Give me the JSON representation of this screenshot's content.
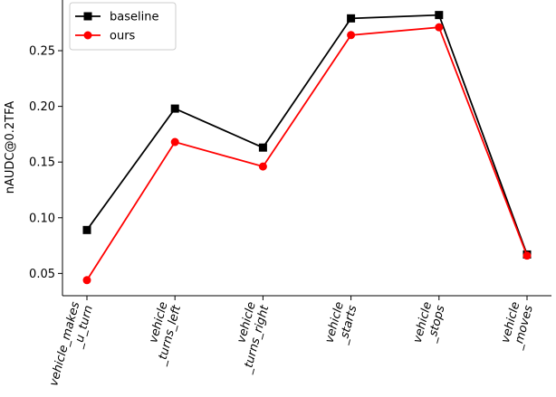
{
  "chart_data": {
    "type": "line",
    "categories": [
      "vehicle_makes\n_u_turn",
      "vehicle\n_turns_left",
      "vehicle\n_turns_right",
      "vehicle\n_starts",
      "vehicle\n_stops",
      "vehicle\n_moves"
    ],
    "series": [
      {
        "name": "baseline",
        "color": "#000000",
        "marker": "square",
        "values": [
          0.089,
          0.198,
          0.163,
          0.279,
          0.282,
          0.067
        ]
      },
      {
        "name": "ours",
        "color": "#ff0000",
        "marker": "circle",
        "values": [
          0.044,
          0.168,
          0.146,
          0.264,
          0.271,
          0.066
        ]
      }
    ],
    "ylabel": "nAUDC@0.2TFA",
    "xlabel": "",
    "ylim": [
      0.03,
      0.2955
    ],
    "yticks": [
      "0.05",
      "0.10",
      "0.15",
      "0.20",
      "0.25"
    ],
    "legend_position": "top-left",
    "grid": false
  }
}
